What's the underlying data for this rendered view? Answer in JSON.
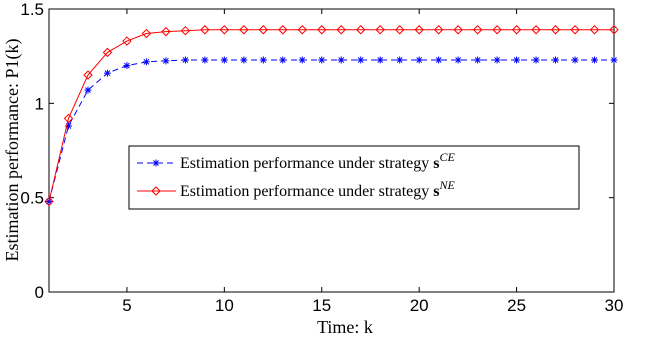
{
  "chart_data": {
    "type": "line",
    "xlabel": "Time:  k",
    "ylabel": "Estimation performance:  P1(k)",
    "xlim": [
      1,
      30
    ],
    "ylim": [
      0,
      1.5
    ],
    "xticks": [
      5,
      10,
      15,
      20,
      25,
      30
    ],
    "yticks": [
      0,
      0.5,
      1,
      1.5
    ],
    "xtick_labels": [
      "5",
      "10",
      "15",
      "20",
      "25",
      "30"
    ],
    "ytick_labels": [
      "0",
      "0.5",
      "1",
      "1.5"
    ],
    "grid": false,
    "legend_position": "center-right",
    "series": [
      {
        "name": "Estimation performance under strategy s^CE",
        "legend_text": "Estimation performance under strategy",
        "legend_symbol": "s",
        "legend_superscript": "CE",
        "color": "#0000ff",
        "line_style": "dashed",
        "marker": "asterisk",
        "x": [
          1,
          2,
          3,
          4,
          5,
          6,
          7,
          8,
          9,
          10,
          11,
          12,
          13,
          14,
          15,
          16,
          17,
          18,
          19,
          20,
          21,
          22,
          23,
          24,
          25,
          26,
          27,
          28,
          29,
          30
        ],
        "values": [
          0.48,
          0.88,
          1.07,
          1.16,
          1.2,
          1.22,
          1.225,
          1.23,
          1.23,
          1.23,
          1.23,
          1.23,
          1.23,
          1.23,
          1.23,
          1.23,
          1.23,
          1.23,
          1.23,
          1.23,
          1.23,
          1.23,
          1.23,
          1.23,
          1.23,
          1.23,
          1.23,
          1.23,
          1.23,
          1.23
        ]
      },
      {
        "name": "Estimation performance under strategy s^NE",
        "legend_text": "Estimation performance under strategy",
        "legend_symbol": "s",
        "legend_superscript": "NE",
        "color": "#ff0000",
        "line_style": "solid",
        "marker": "diamond",
        "x": [
          1,
          2,
          3,
          4,
          5,
          6,
          7,
          8,
          9,
          10,
          11,
          12,
          13,
          14,
          15,
          16,
          17,
          18,
          19,
          20,
          21,
          22,
          23,
          24,
          25,
          26,
          27,
          28,
          29,
          30
        ],
        "values": [
          0.48,
          0.92,
          1.15,
          1.27,
          1.33,
          1.37,
          1.38,
          1.385,
          1.39,
          1.39,
          1.39,
          1.39,
          1.39,
          1.39,
          1.39,
          1.39,
          1.39,
          1.39,
          1.39,
          1.39,
          1.39,
          1.39,
          1.39,
          1.39,
          1.39,
          1.39,
          1.39,
          1.39,
          1.39,
          1.39
        ]
      }
    ]
  }
}
